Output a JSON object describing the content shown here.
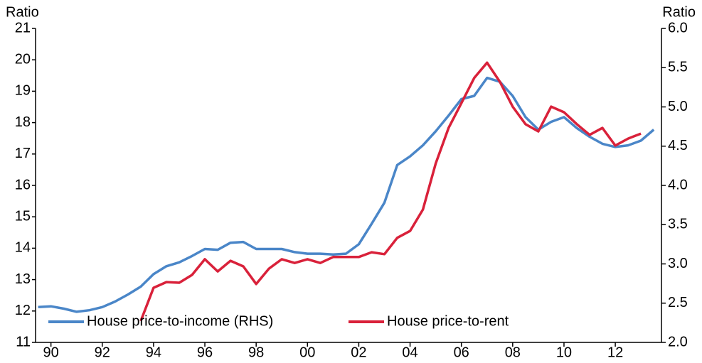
{
  "chart_data": {
    "type": "line",
    "y_label": "Ratio",
    "y2_label": "Ratio",
    "x": [
      1989.5,
      1990,
      1990.5,
      1991,
      1991.5,
      1992,
      1992.5,
      1993,
      1993.5,
      1994,
      1994.5,
      1995,
      1995.5,
      1996,
      1996.5,
      1997,
      1997.5,
      1998,
      1998.5,
      1999,
      1999.5,
      2000,
      2000.5,
      2001,
      2001.5,
      2002,
      2002.5,
      2003,
      2003.5,
      2004,
      2004.5,
      2005,
      2005.5,
      2006,
      2006.5,
      2007,
      2007.5,
      2008,
      2008.5,
      2009,
      2009.5,
      2010,
      2010.5,
      2011,
      2011.5,
      2012,
      2012.5,
      2013,
      2013.5
    ],
    "series": [
      {
        "name": "House price-to-income (RHS)",
        "color": "#4a86c8",
        "axis": "y2",
        "values": [
          2.45,
          2.46,
          2.43,
          2.39,
          2.41,
          2.45,
          2.52,
          2.61,
          2.71,
          2.87,
          2.97,
          3.02,
          3.1,
          3.19,
          3.18,
          3.27,
          3.28,
          3.19,
          3.19,
          3.19,
          3.15,
          3.13,
          3.13,
          3.12,
          3.13,
          3.25,
          3.51,
          3.78,
          4.26,
          4.37,
          4.51,
          4.69,
          4.89,
          5.1,
          5.14,
          5.37,
          5.32,
          5.14,
          4.87,
          4.71,
          4.81,
          4.87,
          4.73,
          4.62,
          4.53,
          4.49,
          4.51,
          4.57,
          4.71
        ]
      },
      {
        "name": "House price-to-rent",
        "color": "#d9213a",
        "values": [
          null,
          null,
          null,
          null,
          null,
          null,
          null,
          null,
          11.68,
          12.74,
          12.92,
          12.9,
          13.15,
          13.65,
          13.26,
          13.6,
          13.42,
          12.86,
          13.35,
          13.65,
          13.53,
          13.65,
          13.53,
          13.72,
          13.72,
          13.72,
          13.87,
          13.81,
          14.33,
          14.55,
          15.23,
          16.7,
          17.83,
          18.62,
          19.42,
          19.91,
          19.3,
          18.51,
          17.95,
          17.72,
          18.51,
          18.33,
          17.95,
          17.61,
          17.83,
          17.27,
          17.49,
          17.65,
          null
        ]
      }
    ],
    "xlim": [
      1989.4,
      2013.8
    ],
    "xticks": [
      {
        "value": 1990,
        "label": "90"
      },
      {
        "value": 1992,
        "label": "92"
      },
      {
        "value": 1994,
        "label": "94"
      },
      {
        "value": 1996,
        "label": "96"
      },
      {
        "value": 1998,
        "label": "98"
      },
      {
        "value": 2000,
        "label": "00"
      },
      {
        "value": 2002,
        "label": "02"
      },
      {
        "value": 2004,
        "label": "04"
      },
      {
        "value": 2006,
        "label": "06"
      },
      {
        "value": 2008,
        "label": "08"
      },
      {
        "value": 2010,
        "label": "10"
      },
      {
        "value": 2012,
        "label": "12"
      }
    ],
    "ylim": [
      11,
      21
    ],
    "yticks": [
      11,
      12,
      13,
      14,
      15,
      16,
      17,
      18,
      19,
      20,
      21
    ],
    "y2lim": [
      2,
      6
    ],
    "y2ticks": [
      {
        "value": 2,
        "label": "2.0"
      },
      2.5,
      {
        "value": 3,
        "label": "3.0"
      },
      3.5,
      {
        "value": 4,
        "label": "4.0"
      },
      4.5,
      {
        "value": 5,
        "label": "5.0"
      },
      5.5,
      {
        "value": 6,
        "label": "6.0"
      }
    ],
    "legend": "lower left"
  }
}
